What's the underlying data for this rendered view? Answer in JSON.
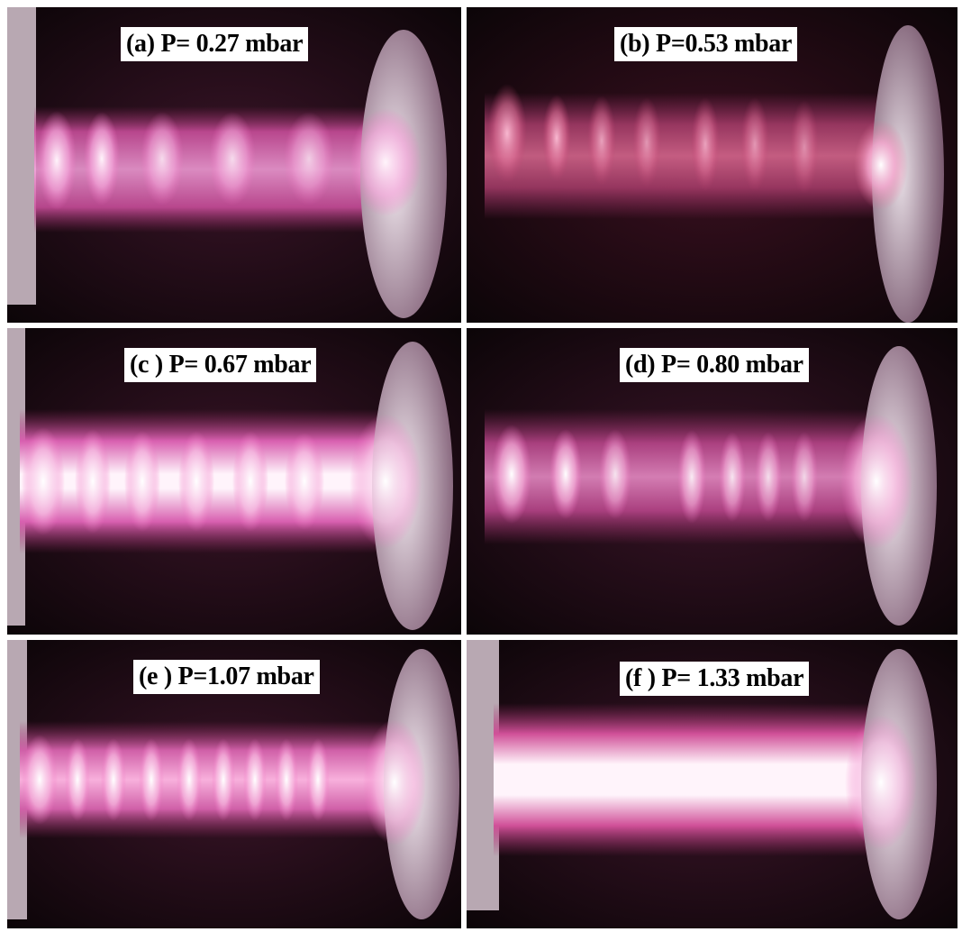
{
  "figure": {
    "panels": [
      {
        "id": "a",
        "label": "(a) P= 0.27 mbar",
        "pressure_mbar": 0.27,
        "striations": 6
      },
      {
        "id": "b",
        "label": "(b) P=0.53 mbar",
        "pressure_mbar": 0.53,
        "striations": 8
      },
      {
        "id": "c",
        "label": "(c ) P= 0.67 mbar",
        "pressure_mbar": 0.67,
        "striations": 7
      },
      {
        "id": "d",
        "label": "(d) P= 0.80 mbar",
        "pressure_mbar": 0.8,
        "striations": 8
      },
      {
        "id": "e",
        "label": "(e ) P=1.07 mbar",
        "pressure_mbar": 1.07,
        "striations": 10
      },
      {
        "id": "f",
        "label": "(f ) P= 1.33 mbar",
        "pressure_mbar": 1.33,
        "striations": 0
      }
    ],
    "colors": {
      "glow_core": "#fff4fb",
      "glow_mid": "#f070c0",
      "glow_edge": "#a0306a",
      "background": "#0c0508",
      "electrode": "#e8dfe6"
    }
  }
}
